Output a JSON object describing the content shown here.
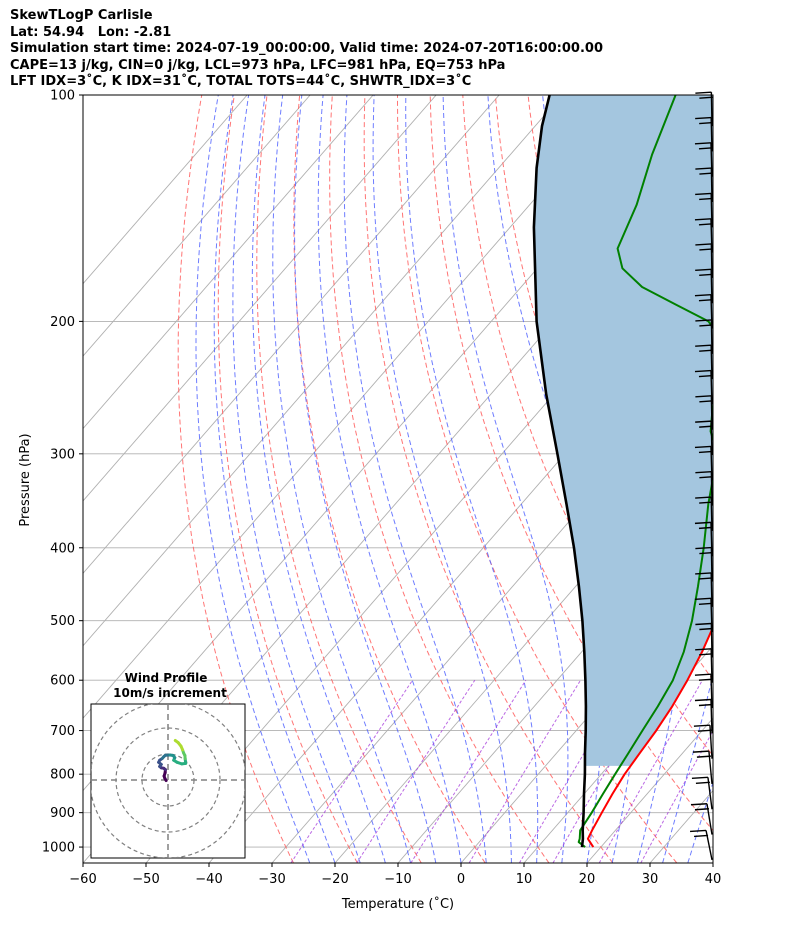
{
  "header": {
    "line1": "SkewTLogP Carlisle",
    "line2": "Lat: 54.94   Lon: -2.81",
    "line3": "Simulation start time: 2024-07-19_00:00:00, Valid time: 2024-07-20T16:00:00.00",
    "line4": "CAPE=13 j/kg, CIN=0 j/kg, LCL=973 hPa, LFC=981 hPa, EQ=753 hPa",
    "line5": "LFT IDX=3˚C, K IDX=31˚C, TOTAL TOTS=44˚C, SHWTR_IDX=3˚C"
  },
  "chart_data": {
    "type": "line",
    "subtype": "skew-T log-P",
    "xlabel": "Temperature (˚C)",
    "ylabel": "Pressure (hPa)",
    "xlim": [
      -60,
      40
    ],
    "ylim": [
      1050,
      100
    ],
    "y_scale": "log",
    "x_ticks": [
      "−60",
      "−50",
      "−40",
      "−30",
      "−20",
      "−10",
      "0",
      "10",
      "20",
      "30",
      "40"
    ],
    "y_ticks": [
      "1000",
      "900",
      "800",
      "700",
      "600",
      "500",
      "400",
      "300",
      "200",
      "100"
    ],
    "grid": true,
    "colors": {
      "temperature": "#ff0000",
      "dewpoint": "#008000",
      "parcel": "#000000",
      "cape_fill": "#a4c6df",
      "dry_adiabats": "#ff6666",
      "moist_adiabats": "#5566ff",
      "mixing_ratio": "#aa44dd",
      "isotherms": "#b0b0b0"
    },
    "series": [
      {
        "role": "temperature",
        "points": [
          [
            1000,
            18.8
          ],
          [
            975,
            16.8
          ],
          [
            950,
            16.3
          ],
          [
            900,
            15.4
          ],
          [
            850,
            14.5
          ],
          [
            800,
            13.7
          ],
          [
            750,
            13.2
          ],
          [
            700,
            12.7
          ],
          [
            650,
            11.9
          ],
          [
            600,
            10.7
          ],
          [
            550,
            9.1
          ],
          [
            500,
            7.0
          ],
          [
            450,
            4.5
          ],
          [
            400,
            1.2
          ],
          [
            350,
            -3.2
          ],
          [
            300,
            -8.8
          ],
          [
            275,
            -12.4
          ],
          [
            250,
            -16.6
          ],
          [
            240,
            -20.2
          ],
          [
            230,
            -21.6
          ],
          [
            220,
            -22.6
          ],
          [
            200,
            -25.6
          ],
          [
            185,
            -28.8
          ],
          [
            170,
            -32.6
          ],
          [
            160,
            -35.6
          ],
          [
            150,
            -38.8
          ],
          [
            140,
            -41.4
          ],
          [
            130,
            -44.7
          ],
          [
            120,
            -48.0
          ],
          [
            110,
            -52.0
          ],
          [
            100,
            -56.0
          ]
        ]
      },
      {
        "role": "dewpoint",
        "points": [
          [
            1000,
            17.5
          ],
          [
            985,
            15.8
          ],
          [
            975,
            15.5
          ],
          [
            950,
            14.4
          ],
          [
            900,
            13.8
          ],
          [
            850,
            13.0
          ],
          [
            800,
            12.2
          ],
          [
            750,
            11.4
          ],
          [
            700,
            10.5
          ],
          [
            650,
            9.6
          ],
          [
            600,
            8.4
          ],
          [
            550,
            6.2
          ],
          [
            500,
            3.2
          ],
          [
            450,
            -0.6
          ],
          [
            400,
            -5.0
          ],
          [
            350,
            -10.3
          ],
          [
            300,
            -15.8
          ],
          [
            280,
            -20.0
          ],
          [
            260,
            -23.0
          ],
          [
            240,
            -25.5
          ],
          [
            230,
            -26.4
          ],
          [
            220,
            -28.8
          ],
          [
            210,
            -31.5
          ],
          [
            200,
            -35.5
          ],
          [
            190,
            -43.0
          ],
          [
            180,
            -50.8
          ],
          [
            170,
            -56.5
          ],
          [
            160,
            -60.0
          ],
          [
            140,
            -63.0
          ],
          [
            120,
            -67.5
          ],
          [
            100,
            -72.0
          ]
        ]
      },
      {
        "role": "parcel",
        "points": [
          [
            1000,
            17.0
          ],
          [
            975,
            16.0
          ],
          [
            950,
            14.8
          ],
          [
            900,
            12.5
          ],
          [
            850,
            10.0
          ],
          [
            800,
            7.4
          ],
          [
            750,
            4.5
          ],
          [
            700,
            1.5
          ],
          [
            650,
            -1.8
          ],
          [
            600,
            -5.5
          ],
          [
            550,
            -9.6
          ],
          [
            500,
            -14.2
          ],
          [
            450,
            -19.5
          ],
          [
            400,
            -25.6
          ],
          [
            350,
            -32.8
          ],
          [
            300,
            -41.2
          ],
          [
            250,
            -51.2
          ],
          [
            200,
            -62.8
          ],
          [
            150,
            -76.2
          ],
          [
            125,
            -84.0
          ],
          [
            110,
            -88.9
          ],
          [
            100,
            -92.0
          ]
        ]
      }
    ],
    "wind_barbs_count": 30,
    "hodograph": {
      "title": "Wind Profile",
      "subtitle": "10m/s increment",
      "rings_ms": [
        10,
        20,
        30
      ],
      "colormap": "viridis",
      "points": [
        [
          -0.7,
          -0.2
        ],
        [
          -1.2,
          0.6
        ],
        [
          -1.5,
          1.5
        ],
        [
          -1.1,
          2.8
        ],
        [
          -1.0,
          4.0
        ],
        [
          -1.6,
          4.5
        ],
        [
          -2.6,
          4.7
        ],
        [
          -3.2,
          5.2
        ],
        [
          -2.6,
          6.0
        ],
        [
          -3.6,
          6.8
        ],
        [
          -3.2,
          7.6
        ],
        [
          -2.2,
          8.3
        ],
        [
          -1.6,
          9.0
        ],
        [
          -1.0,
          9.5
        ],
        [
          0.8,
          9.6
        ],
        [
          2.0,
          9.4
        ],
        [
          2.6,
          8.6
        ],
        [
          2.2,
          7.6
        ],
        [
          3.5,
          6.8
        ],
        [
          5.3,
          6.2
        ],
        [
          6.8,
          6.4
        ],
        [
          6.6,
          8.2
        ],
        [
          6.5,
          9.4
        ],
        [
          6.0,
          10.4
        ],
        [
          5.6,
          11.6
        ],
        [
          5.0,
          13.0
        ],
        [
          3.9,
          14.4
        ],
        [
          2.8,
          15.2
        ]
      ]
    }
  }
}
